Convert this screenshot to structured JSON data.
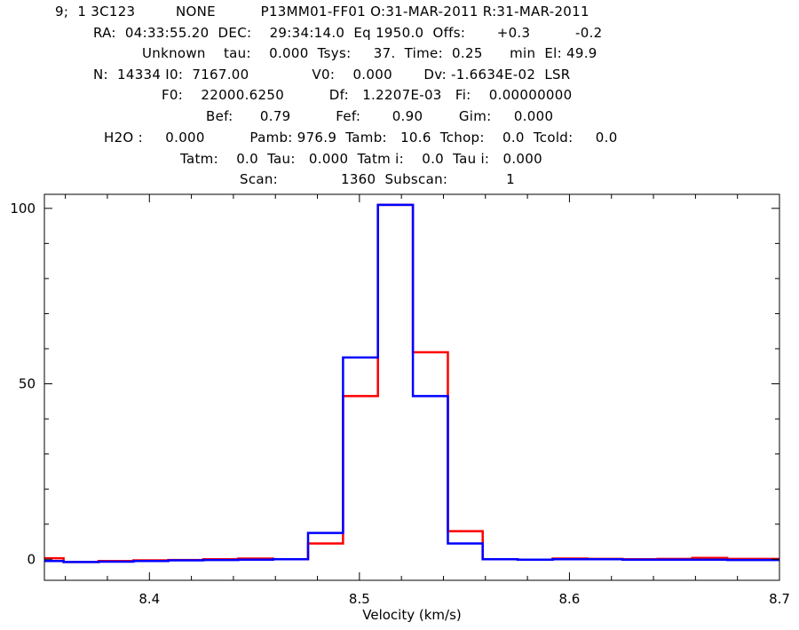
{
  "header": {
    "lines": [
      "9;  1 3C123         NONE          P13MM01-FF01 O:31-MAR-2011 R:31-MAR-2011",
      "RA:  04:33:55.20  DEC:    29:34:14.0  Eq 1950.0  Offs:       +0.3          -0.2",
      "Unknown    tau:    0.000  Tsys:     37.  Time:  0.25      min  El: 49.9",
      "N:  14334 I0:  7167.00              V0:    0.000       Dv: -1.6634E-02  LSR",
      "F0:    22000.6250          Df:   1.2207E-03   Fi:    0.00000000",
      "Bef:      0.79          Fef:       0.90        Gim:     0.000",
      "H2O :     0.000          Pamb: 976.9  Tamb:   10.6  Tchop:    0.0  Tcold:     0.0",
      "Tatm:    0.0  Tau:   0.000  Tatm i:    0.0  Tau i:   0.000",
      "Scan:              1360  Subscan:             1"
    ]
  },
  "chart_data": {
    "type": "line",
    "step": true,
    "xlabel": "Velocity (km/s)",
    "ylabel": "",
    "xlim": [
      8.35,
      8.7
    ],
    "ylim": [
      -6,
      104
    ],
    "xticks": [
      8.4,
      8.5,
      8.6,
      8.7
    ],
    "xtick_labels": [
      "8.4",
      "8.5",
      "8.6",
      "8.7"
    ],
    "yticks": [
      0,
      50,
      100
    ],
    "ytick_labels": [
      "0",
      "50",
      "100"
    ],
    "grid": false,
    "series": [
      {
        "color": "#ff0000",
        "x": [
          8.3508,
          8.3675,
          8.3841,
          8.4007,
          8.4173,
          8.434,
          8.4506,
          8.4672,
          8.4839,
          8.5005,
          8.5171,
          8.5338,
          8.5504,
          8.567,
          8.5837,
          8.6003,
          8.6169,
          8.6336,
          8.6502,
          8.6668,
          8.6834
        ],
        "values": [
          0.3,
          -0.8,
          -0.5,
          -0.3,
          -0.2,
          0.0,
          0.2,
          0.0,
          4.5,
          46.5,
          101.0,
          59.0,
          8.0,
          0.0,
          -0.1,
          0.2,
          0.1,
          0.0,
          0.1,
          0.4,
          0.1
        ]
      },
      {
        "color": "#0000ff",
        "x": [
          8.3508,
          8.3675,
          8.3841,
          8.4007,
          8.4173,
          8.434,
          8.4506,
          8.4672,
          8.4839,
          8.5005,
          8.5171,
          8.5338,
          8.5504,
          8.567,
          8.5837,
          8.6003,
          8.6169,
          8.6336,
          8.6502,
          8.6668,
          8.6834
        ],
        "values": [
          -0.5,
          -0.8,
          -0.7,
          -0.5,
          -0.3,
          -0.2,
          -0.1,
          0.0,
          7.5,
          57.5,
          101.0,
          46.5,
          4.5,
          0.0,
          -0.1,
          0.0,
          0.0,
          -0.1,
          -0.1,
          -0.1,
          -0.2
        ]
      }
    ]
  }
}
